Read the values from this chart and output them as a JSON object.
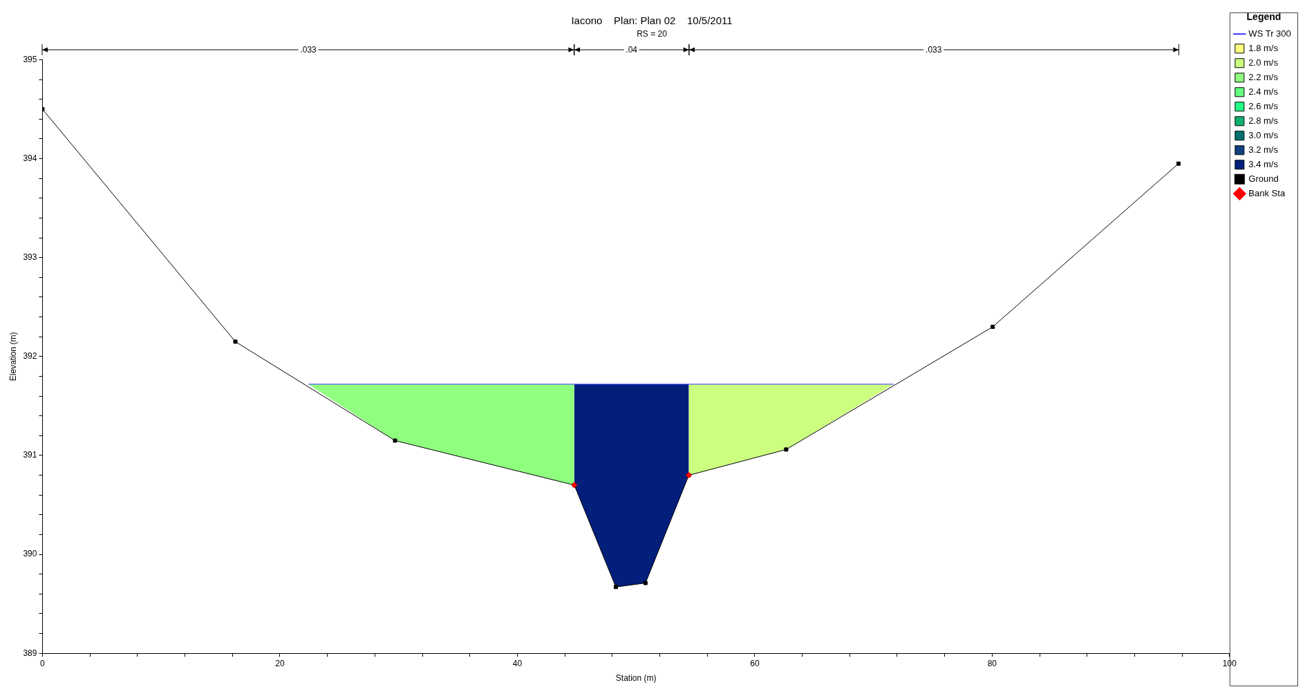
{
  "chart_data": {
    "type": "area",
    "title": "Iacono    Plan: Plan 02    10/5/2011",
    "subtitle": "RS = 20",
    "xlabel": "Station (m)",
    "ylabel": "Elevation (m)",
    "legend_title": "Legend",
    "legend": "top right",
    "grid": false,
    "xlim": [
      0,
      100
    ],
    "ylim": [
      389,
      395
    ],
    "xticks": [
      0,
      {
        "value": 4,
        "label": null
      },
      {
        "value": 8,
        "label": null
      },
      {
        "value": 12,
        "label": null
      },
      {
        "value": 16,
        "label": null
      },
      20,
      {
        "value": 24,
        "label": null
      },
      {
        "value": 28,
        "label": null
      },
      {
        "value": 32,
        "label": null
      },
      {
        "value": 36,
        "label": null
      },
      40,
      {
        "value": 44,
        "label": null
      },
      {
        "value": 48,
        "label": null
      },
      {
        "value": 52,
        "label": null
      },
      {
        "value": 56,
        "label": null
      },
      60,
      {
        "value": 64,
        "label": null
      },
      {
        "value": 68,
        "label": null
      },
      {
        "value": 72,
        "label": null
      },
      {
        "value": 76,
        "label": null
      },
      80,
      {
        "value": 84,
        "label": null
      },
      {
        "value": 88,
        "label": null
      },
      {
        "value": 92,
        "label": null
      },
      {
        "value": 96,
        "label": null
      },
      100
    ],
    "yticks": [
      389,
      {
        "value": 389.2,
        "label": null
      },
      {
        "value": 389.4,
        "label": null
      },
      {
        "value": 389.6,
        "label": null
      },
      {
        "value": 389.8,
        "label": null
      },
      390,
      {
        "value": 390.2,
        "label": null
      },
      {
        "value": 390.4,
        "label": null
      },
      {
        "value": 390.6,
        "label": null
      },
      {
        "value": 390.8,
        "label": null
      },
      391,
      {
        "value": 391.2,
        "label": null
      },
      {
        "value": 391.4,
        "label": null
      },
      {
        "value": 391.6,
        "label": null
      },
      {
        "value": 391.8,
        "label": null
      },
      392,
      {
        "value": 392.2,
        "label": null
      },
      {
        "value": 392.4,
        "label": null
      },
      {
        "value": 392.6,
        "label": null
      },
      {
        "value": 392.8,
        "label": null
      },
      393,
      {
        "value": 393.2,
        "label": null
      },
      {
        "value": 393.4,
        "label": null
      },
      {
        "value": 393.6,
        "label": null
      },
      {
        "value": 393.8,
        "label": null
      },
      394,
      {
        "value": 394.2,
        "label": null
      },
      {
        "value": 394.4,
        "label": null
      },
      {
        "value": 394.6,
        "label": null
      },
      {
        "value": 394.8,
        "label": null
      },
      395
    ],
    "annotations": [
      ".033",
      ".04",
      ".033"
    ],
    "series": [
      {
        "name": "WS Tr 300",
        "type": "line",
        "color": "#3333ff",
        "marker": "none",
        "x": [
          22.4,
          71.7
        ],
        "values": [
          391.72,
          391.72
        ]
      },
      {
        "name": "1.8 m/s",
        "color": "#ffff80"
      },
      {
        "name": "2.0 m/s",
        "color": "#ccff80",
        "x": [
          54.45,
          54.45,
          62.65,
          71.7
        ],
        "values": [
          391.72,
          390.8,
          391.06,
          391.72
        ]
      },
      {
        "name": "2.2 m/s",
        "color": "#90ff80",
        "x": [
          22.4,
          29.7,
          44.8,
          44.8
        ],
        "values": [
          391.72,
          391.15,
          390.7,
          391.72
        ]
      },
      {
        "name": "2.4 m/s",
        "color": "#66ff80"
      },
      {
        "name": "2.6 m/s",
        "color": "#22ff88"
      },
      {
        "name": "2.8 m/s",
        "color": "#10b070"
      },
      {
        "name": "3.0 m/s",
        "color": "#007070"
      },
      {
        "name": "3.2 m/s",
        "color": "#104080"
      },
      {
        "name": "3.4 m/s",
        "color": "#021f7c",
        "x": [
          44.8,
          44.8,
          48.3,
          50.8,
          54.45,
          54.45
        ],
        "values": [
          391.72,
          390.7,
          389.67,
          389.71,
          390.8,
          391.72
        ]
      },
      {
        "name": "Ground",
        "type": "line",
        "color": "#000000",
        "marker": "square",
        "x": [
          0,
          16.25,
          29.7,
          44.8,
          48.3,
          50.8,
          54.45,
          62.65,
          80.05,
          95.7
        ],
        "values": [
          394.5,
          392.15,
          391.15,
          390.7,
          389.67,
          389.71,
          390.8,
          391.06,
          392.3,
          393.95
        ]
      },
      {
        "name": "Bank Sta",
        "type": "scatter",
        "color": "#ff0000",
        "marker": "diamond",
        "x": [
          44.8,
          54.45
        ],
        "values": [
          390.7,
          390.8
        ]
      }
    ]
  }
}
